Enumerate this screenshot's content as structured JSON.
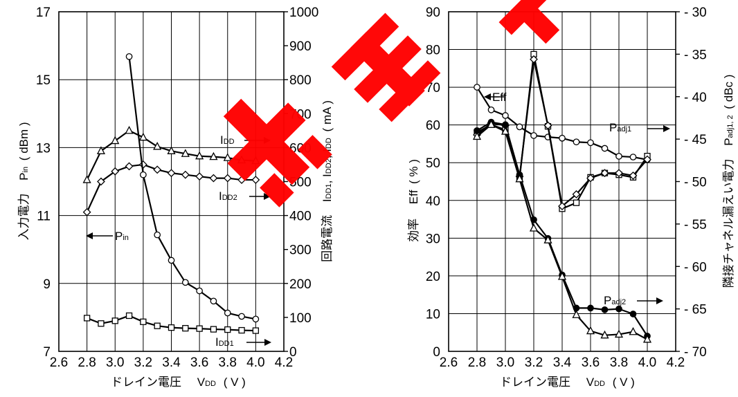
{
  "chart_data": [
    {
      "type": "line",
      "x_axis": {
        "title": "ドレイン電圧",
        "sym": "V",
        "sub": "DD",
        "unit": "( V )",
        "range": [
          2.6,
          4.2
        ],
        "ticks": [
          "2.6",
          "2.8",
          "3.0",
          "3.2",
          "3.4",
          "3.6",
          "3.8",
          "4.0",
          "4.2"
        ]
      },
      "y_left": {
        "title": "入力電力",
        "sym": "P",
        "sub": "in",
        "unit": "( dBm )",
        "range": [
          7,
          17
        ],
        "ticks": [
          "7",
          "9",
          "11",
          "13",
          "15",
          "17"
        ]
      },
      "y_right": {
        "title": "回路電流",
        "syms": [
          "I",
          "DD1",
          ", I",
          "DD2",
          ", I",
          "DD",
          "( mA )"
        ],
        "range": [
          0,
          1000
        ],
        "ticks": [
          "0",
          "100",
          "200",
          "300",
          "400",
          "500",
          "600",
          "700",
          "800",
          "900",
          "1000"
        ]
      },
      "grid": true,
      "series": [
        {
          "key": "pin",
          "axis": "left",
          "marker": "diamond",
          "x": [
            2.8,
            2.9,
            3.0,
            3.1,
            3.2,
            3.3,
            3.4,
            3.5,
            3.6,
            3.7,
            3.8,
            3.9,
            4.0
          ],
          "y": [
            11.1,
            12.0,
            12.3,
            12.45,
            12.5,
            12.35,
            12.25,
            12.2,
            12.15,
            12.1,
            12.1,
            12.05,
            12.05
          ]
        },
        {
          "key": "idd",
          "axis": "right",
          "marker": "triangle",
          "x": [
            2.8,
            2.9,
            3.0,
            3.1,
            3.2,
            3.3,
            3.4,
            3.5,
            3.6,
            3.7,
            3.8,
            3.9,
            4.0
          ],
          "y": [
            505,
            590,
            620,
            650,
            630,
            603,
            590,
            582,
            575,
            573,
            570,
            563,
            561
          ]
        },
        {
          "key": "idd2",
          "axis": "right",
          "marker": "circle",
          "x": [
            3.1,
            3.2,
            3.3,
            3.4,
            3.5,
            3.6,
            3.7,
            3.8,
            3.9,
            4.0
          ],
          "y": [
            868,
            520,
            343,
            268,
            203,
            178,
            148,
            113,
            103,
            95
          ]
        },
        {
          "key": "idd1",
          "axis": "right",
          "marker": "square",
          "x": [
            2.8,
            2.9,
            3.0,
            3.1,
            3.2,
            3.3,
            3.4,
            3.5,
            3.6,
            3.7,
            3.8,
            3.9,
            4.0
          ],
          "y": [
            98,
            82,
            90,
            105,
            87,
            75,
            70,
            68,
            67,
            65,
            64,
            62,
            61
          ]
        }
      ],
      "annotations": {
        "pin": {
          "sym": "P",
          "sub": "in"
        },
        "idd": {
          "sym": "I",
          "sub": "DD"
        },
        "idd2": {
          "sym": "I",
          "sub": "DD2"
        },
        "idd1": {
          "sym": "I",
          "sub": "DD1"
        }
      }
    },
    {
      "type": "line",
      "x_axis": {
        "title": "ドレイン電圧",
        "sym": "V",
        "sub": "DD",
        "unit": "( V )",
        "range": [
          2.6,
          4.2
        ],
        "ticks": [
          "2.6",
          "2.8",
          "3.0",
          "3.2",
          "3.4",
          "3.6",
          "3.8",
          "4.0",
          "4.2"
        ]
      },
      "y_left": {
        "title": "効率",
        "label": "Eff",
        "unit": "( % )",
        "range": [
          0,
          90
        ],
        "ticks": [
          "0",
          "10",
          "20",
          "30",
          "40",
          "50",
          "60",
          "70",
          "80",
          "90"
        ]
      },
      "y_right": {
        "title": "隣接チャネル漏えい電力",
        "sym": "P",
        "sub": "adj1, 2",
        "unit": "( dBc )",
        "range": [
          -70,
          -30
        ],
        "ticks": [
          "- 70",
          "- 65",
          "- 60",
          "- 55",
          "- 50",
          "- 45",
          "- 40",
          "- 35",
          "- 30"
        ]
      },
      "grid": true,
      "series": [
        {
          "key": "eff",
          "axis": "left",
          "marker": "circle",
          "x": [
            2.8,
            2.9,
            3.0,
            3.1,
            3.2,
            3.3,
            3.4,
            3.5,
            3.6,
            3.7,
            3.8,
            3.9,
            4.0
          ],
          "y": [
            70,
            64,
            62.5,
            59.5,
            57.2,
            56.8,
            56.5,
            55.5,
            55.3,
            53.8,
            51.7,
            51.5,
            50.8
          ]
        },
        {
          "key": "padj1_a",
          "axis": "right",
          "marker": "square",
          "x": [
            2.8,
            2.9,
            3.0,
            3.1,
            3.2,
            3.3,
            3.4,
            3.5,
            3.6,
            3.7,
            3.8,
            3.9,
            4.0
          ],
          "y": [
            -44.2,
            -43.3,
            -43.9,
            -49.6,
            -35.0,
            -43.5,
            -53.2,
            -52.5,
            -49.5,
            -49.0,
            -49.2,
            -49.5,
            -47.0
          ]
        },
        {
          "key": "padj1_b",
          "axis": "right",
          "marker": "diamond",
          "x": [
            2.8,
            2.9,
            3.0,
            3.1,
            3.2,
            3.3,
            3.4,
            3.5,
            3.6,
            3.7,
            3.8,
            3.9,
            4.0
          ],
          "y": [
            -44.5,
            -43.1,
            -43.4,
            -49.4,
            -35.6,
            -43.4,
            -52.9,
            -51.5,
            -49.6,
            -49.0,
            -49.0,
            -49.3,
            -47.4
          ]
        },
        {
          "key": "padj2_a",
          "axis": "right",
          "marker": "dot",
          "x": [
            2.8,
            2.9,
            3.0,
            3.1,
            3.2,
            3.3,
            3.4,
            3.5,
            3.6,
            3.7,
            3.8,
            3.9,
            4.0
          ],
          "y": [
            -44.0,
            -43.0,
            -43.3,
            -49.2,
            -54.5,
            -56.7,
            -61.0,
            -64.9,
            -64.9,
            -65.1,
            -65.0,
            -65.6,
            -68.2
          ]
        },
        {
          "key": "padj2_b",
          "axis": "right",
          "marker": "triangle",
          "x": [
            2.8,
            2.9,
            3.0,
            3.1,
            3.2,
            3.3,
            3.4,
            3.5,
            3.6,
            3.7,
            3.8,
            3.9,
            4.0
          ],
          "y": [
            -44.7,
            -43.3,
            -44.1,
            -49.7,
            -55.5,
            -56.9,
            -61.2,
            -65.7,
            -67.6,
            -68.1,
            -68.0,
            -67.7,
            -68.6
          ]
        }
      ],
      "annotations": {
        "eff": {
          "label": "Eff"
        },
        "padj1": {
          "sym": "P",
          "sub": "adj1"
        },
        "padj2": {
          "sym": "P",
          "sub": "adj2"
        }
      }
    }
  ]
}
